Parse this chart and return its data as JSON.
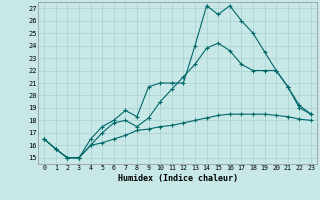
{
  "xlabel": "Humidex (Indice chaleur)",
  "background_color": "#c8e8e8",
  "grid_color": "#a8d0d0",
  "line_color": "#006868",
  "xlim": [
    -0.5,
    23.5
  ],
  "ylim": [
    14.5,
    27.5
  ],
  "xticks": [
    0,
    1,
    2,
    3,
    4,
    5,
    6,
    7,
    8,
    9,
    10,
    11,
    12,
    13,
    14,
    15,
    16,
    17,
    18,
    19,
    20,
    21,
    22,
    23
  ],
  "yticks": [
    15,
    16,
    17,
    18,
    19,
    20,
    21,
    22,
    23,
    24,
    25,
    26,
    27
  ],
  "line1_x": [
    0,
    1,
    2,
    3,
    4,
    5,
    6,
    7,
    8,
    9,
    10,
    11,
    12,
    13,
    14,
    15,
    16,
    17,
    18,
    19,
    20,
    21,
    22,
    23
  ],
  "line1_y": [
    16.5,
    15.7,
    15.0,
    15.0,
    16.5,
    17.5,
    18.0,
    18.8,
    18.3,
    20.7,
    21.0,
    21.0,
    21.0,
    24.0,
    27.2,
    26.5,
    27.2,
    26.0,
    25.0,
    23.5,
    22.0,
    20.7,
    19.0,
    18.5
  ],
  "line2_x": [
    0,
    1,
    2,
    3,
    4,
    5,
    6,
    7,
    8,
    9,
    10,
    11,
    12,
    13,
    14,
    15,
    16,
    17,
    18,
    19,
    20,
    21,
    22,
    23
  ],
  "line2_y": [
    16.5,
    15.7,
    15.0,
    15.0,
    16.0,
    17.0,
    17.8,
    18.0,
    17.5,
    18.2,
    19.5,
    20.5,
    21.5,
    22.5,
    23.8,
    24.2,
    23.6,
    22.5,
    22.0,
    22.0,
    22.0,
    20.7,
    19.2,
    18.5
  ],
  "line3_x": [
    0,
    1,
    2,
    3,
    4,
    5,
    6,
    7,
    8,
    9,
    10,
    11,
    12,
    13,
    14,
    15,
    16,
    17,
    18,
    19,
    20,
    21,
    22,
    23
  ],
  "line3_y": [
    16.5,
    15.7,
    15.0,
    15.0,
    16.0,
    16.2,
    16.5,
    16.8,
    17.2,
    17.3,
    17.5,
    17.6,
    17.8,
    18.0,
    18.2,
    18.4,
    18.5,
    18.5,
    18.5,
    18.5,
    18.4,
    18.3,
    18.1,
    18.0
  ]
}
